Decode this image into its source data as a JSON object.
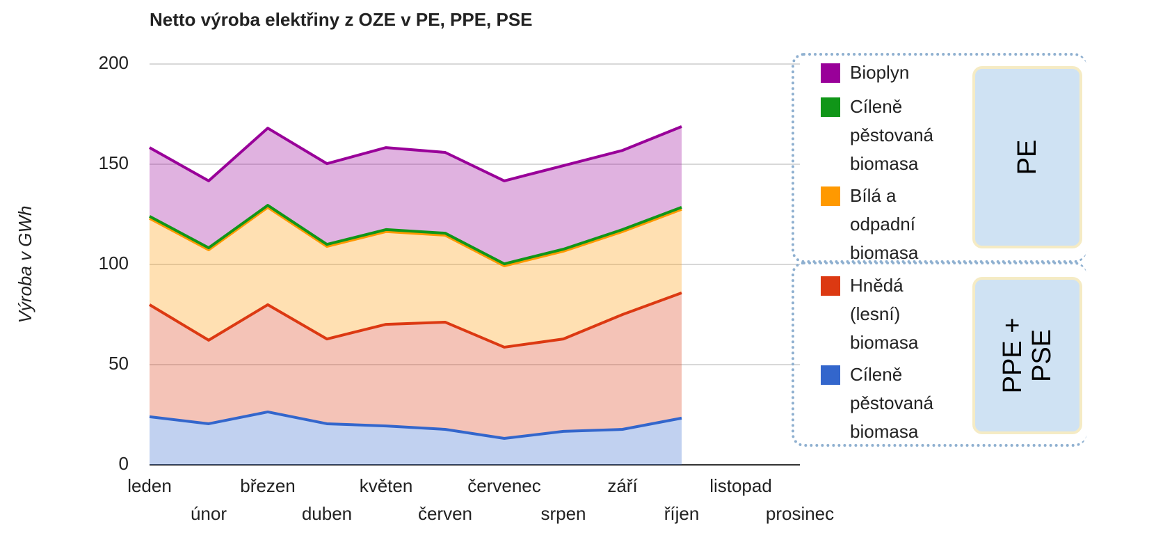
{
  "chart_data": {
    "type": "stacked_area",
    "title": "Netto výroba elektřiny z OZE v PE, PPE, PSE",
    "y_label": "Výroba v GWh",
    "categories": [
      "leden",
      "únor",
      "březen",
      "duben",
      "květen",
      "červen",
      "červenec",
      "srpen",
      "září",
      "říjen",
      "listopad",
      "prosinec"
    ],
    "series": [
      {
        "name": "Bioplyn",
        "color": "#990099",
        "values": [
          34.3,
          33.4,
          38.5,
          40.3,
          40.9,
          40.3,
          41.4,
          41.7,
          39.5,
          40.3,
          null,
          null
        ]
      },
      {
        "name": "Cíleně pěstovaná biomasa",
        "color": "#109618",
        "values": [
          1,
          1,
          1,
          1,
          1,
          1,
          1,
          1,
          1,
          1,
          null,
          null
        ]
      },
      {
        "name": "Bílá a odpadní biomasa",
        "color": "#ff9900",
        "values": [
          43.1,
          45.1,
          48.6,
          46.2,
          46.3,
          43.4,
          40.6,
          43.8,
          41.4,
          41.7,
          null,
          null
        ]
      },
      {
        "name": "Hnědá (lesní) biomasa",
        "color": "#dc3912",
        "values": [
          55.9,
          41.7,
          53.5,
          42.3,
          50.7,
          53.5,
          45.5,
          46.1,
          57.3,
          62.5,
          null,
          null
        ]
      },
      {
        "name": "Cíleně pěstovaná biomasa",
        "color": "#3366cc",
        "values": [
          24,
          20.5,
          26.4,
          20.5,
          19.4,
          17.7,
          13.2,
          16.7,
          17.7,
          23.3,
          null,
          null
        ]
      }
    ],
    "legend_groups": [
      "PE",
      "PPE + PSE"
    ],
    "ylim": [
      0,
      200
    ],
    "yticks": [
      0,
      50,
      100,
      150,
      200
    ],
    "grid": true
  }
}
